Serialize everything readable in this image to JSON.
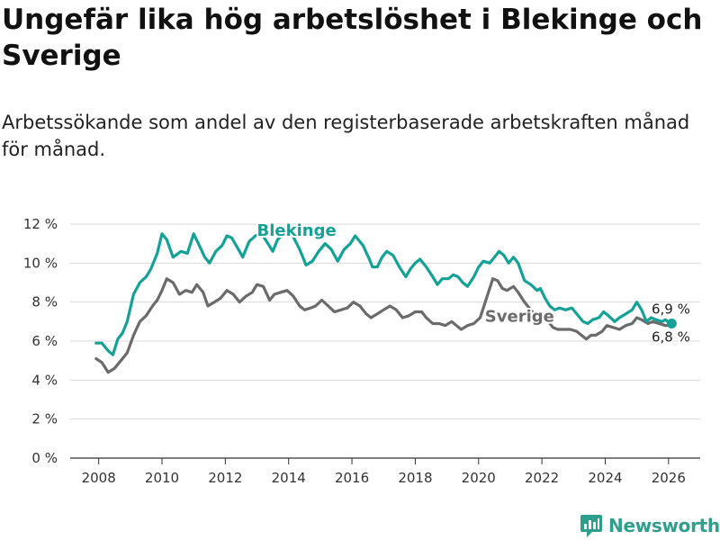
{
  "title": "Ungefär lika hög arbetslöshet i Blekinge och Sverige",
  "subtitle": "Arbetssökande som andel av den registerbaserade arbetskraften månad för månad.",
  "brand": {
    "name": "Newsworthy"
  },
  "colors": {
    "blekinge": "#14a196",
    "sverige": "#6b6b6b",
    "grid": "#d9d9d9",
    "axis": "#333333",
    "brand": "#2f9f8d"
  },
  "chart_data": {
    "type": "line",
    "title": "Ungefär lika hög arbetslöshet i Blekinge och Sverige",
    "subtitle": "Arbetssökande som andel av den registerbaserade arbetskraften månad för månad.",
    "xlabel": "",
    "ylabel": "",
    "xlim": [
      2007.1,
      2027.0
    ],
    "ylim": [
      0,
      12
    ],
    "x_ticks": [
      2008,
      2010,
      2012,
      2014,
      2016,
      2018,
      2020,
      2022,
      2024,
      2026
    ],
    "x_tick_labels": [
      "2008",
      "2010",
      "2012",
      "2014",
      "2016",
      "2018",
      "2020",
      "2022",
      "2024",
      "2026"
    ],
    "y_ticks": [
      0,
      2,
      4,
      6,
      8,
      10,
      12
    ],
    "y_tick_labels": [
      "0 %",
      "2 %",
      "4 %",
      "6 %",
      "8 %",
      "10 %",
      "12 %"
    ],
    "grid": true,
    "series": [
      {
        "name": "Blekinge",
        "color": "#14a196",
        "label_at": [
          2013.0,
          11.4
        ],
        "end_label": "6,9 %",
        "points": [
          [
            2007.92,
            5.9
          ],
          [
            2008.1,
            5.9
          ],
          [
            2008.3,
            5.5
          ],
          [
            2008.45,
            5.3
          ],
          [
            2008.6,
            6.1
          ],
          [
            2008.75,
            6.4
          ],
          [
            2008.9,
            7.0
          ],
          [
            2009.1,
            8.4
          ],
          [
            2009.3,
            9.0
          ],
          [
            2009.5,
            9.3
          ],
          [
            2009.65,
            9.7
          ],
          [
            2009.85,
            10.5
          ],
          [
            2010.0,
            11.5
          ],
          [
            2010.15,
            11.2
          ],
          [
            2010.35,
            10.3
          ],
          [
            2010.6,
            10.6
          ],
          [
            2010.8,
            10.5
          ],
          [
            2011.0,
            11.5
          ],
          [
            2011.15,
            11.0
          ],
          [
            2011.35,
            10.3
          ],
          [
            2011.5,
            10.0
          ],
          [
            2011.7,
            10.6
          ],
          [
            2011.9,
            10.9
          ],
          [
            2012.05,
            11.4
          ],
          [
            2012.2,
            11.3
          ],
          [
            2012.45,
            10.6
          ],
          [
            2012.55,
            10.3
          ],
          [
            2012.75,
            11.1
          ],
          [
            2012.95,
            11.4
          ],
          [
            2013.15,
            11.5
          ],
          [
            2013.35,
            11.0
          ],
          [
            2013.5,
            10.6
          ],
          [
            2013.65,
            11.2
          ],
          [
            2013.85,
            11.5
          ],
          [
            2014.1,
            11.5
          ],
          [
            2014.35,
            10.7
          ],
          [
            2014.55,
            9.9
          ],
          [
            2014.75,
            10.1
          ],
          [
            2014.95,
            10.6
          ],
          [
            2015.15,
            11.0
          ],
          [
            2015.35,
            10.7
          ],
          [
            2015.55,
            10.1
          ],
          [
            2015.75,
            10.7
          ],
          [
            2015.95,
            11.0
          ],
          [
            2016.1,
            11.4
          ],
          [
            2016.35,
            10.9
          ],
          [
            2016.55,
            10.2
          ],
          [
            2016.65,
            9.8
          ],
          [
            2016.8,
            9.8
          ],
          [
            2016.95,
            10.3
          ],
          [
            2017.1,
            10.6
          ],
          [
            2017.3,
            10.4
          ],
          [
            2017.5,
            9.8
          ],
          [
            2017.7,
            9.3
          ],
          [
            2017.85,
            9.7
          ],
          [
            2018.0,
            10.0
          ],
          [
            2018.15,
            10.2
          ],
          [
            2018.35,
            9.8
          ],
          [
            2018.55,
            9.3
          ],
          [
            2018.7,
            8.9
          ],
          [
            2018.85,
            9.2
          ],
          [
            2019.05,
            9.2
          ],
          [
            2019.2,
            9.4
          ],
          [
            2019.35,
            9.3
          ],
          [
            2019.5,
            9.0
          ],
          [
            2019.65,
            8.8
          ],
          [
            2019.85,
            9.3
          ],
          [
            2020.0,
            9.8
          ],
          [
            2020.15,
            10.1
          ],
          [
            2020.35,
            10.0
          ],
          [
            2020.5,
            10.3
          ],
          [
            2020.65,
            10.6
          ],
          [
            2020.8,
            10.4
          ],
          [
            2020.95,
            10.0
          ],
          [
            2021.1,
            10.3
          ],
          [
            2021.25,
            10.0
          ],
          [
            2021.45,
            9.1
          ],
          [
            2021.65,
            8.9
          ],
          [
            2021.85,
            8.6
          ],
          [
            2021.95,
            8.7
          ],
          [
            2022.1,
            8.2
          ],
          [
            2022.25,
            7.8
          ],
          [
            2022.4,
            7.6
          ],
          [
            2022.55,
            7.7
          ],
          [
            2022.75,
            7.6
          ],
          [
            2022.95,
            7.7
          ],
          [
            2023.1,
            7.4
          ],
          [
            2023.3,
            7.0
          ],
          [
            2023.45,
            6.9
          ],
          [
            2023.6,
            7.1
          ],
          [
            2023.8,
            7.2
          ],
          [
            2023.95,
            7.5
          ],
          [
            2024.1,
            7.3
          ],
          [
            2024.3,
            7.0
          ],
          [
            2024.45,
            7.2
          ],
          [
            2024.65,
            7.4
          ],
          [
            2024.85,
            7.6
          ],
          [
            2025.0,
            8.0
          ],
          [
            2025.15,
            7.6
          ],
          [
            2025.3,
            7.0
          ],
          [
            2025.45,
            7.2
          ],
          [
            2025.6,
            7.1
          ],
          [
            2025.8,
            7.0
          ],
          [
            2025.9,
            7.1
          ],
          [
            2026.05,
            6.9
          ],
          [
            2026.1,
            6.9
          ]
        ]
      },
      {
        "name": "Sverige",
        "color": "#6b6b6b",
        "label_at": [
          2020.2,
          7.0
        ],
        "end_label": "6,8 %",
        "points": [
          [
            2007.92,
            5.1
          ],
          [
            2008.1,
            4.9
          ],
          [
            2008.3,
            4.4
          ],
          [
            2008.5,
            4.6
          ],
          [
            2008.7,
            5.0
          ],
          [
            2008.9,
            5.4
          ],
          [
            2009.1,
            6.3
          ],
          [
            2009.3,
            7.0
          ],
          [
            2009.5,
            7.3
          ],
          [
            2009.7,
            7.8
          ],
          [
            2009.85,
            8.1
          ],
          [
            2010.0,
            8.6
          ],
          [
            2010.15,
            9.2
          ],
          [
            2010.35,
            9.0
          ],
          [
            2010.55,
            8.4
          ],
          [
            2010.75,
            8.6
          ],
          [
            2010.95,
            8.5
          ],
          [
            2011.1,
            8.9
          ],
          [
            2011.3,
            8.5
          ],
          [
            2011.45,
            7.8
          ],
          [
            2011.65,
            8.0
          ],
          [
            2011.85,
            8.2
          ],
          [
            2012.05,
            8.6
          ],
          [
            2012.25,
            8.4
          ],
          [
            2012.45,
            8.0
          ],
          [
            2012.65,
            8.3
          ],
          [
            2012.85,
            8.5
          ],
          [
            2013.0,
            8.9
          ],
          [
            2013.2,
            8.8
          ],
          [
            2013.4,
            8.1
          ],
          [
            2013.55,
            8.4
          ],
          [
            2013.75,
            8.5
          ],
          [
            2013.95,
            8.6
          ],
          [
            2014.15,
            8.3
          ],
          [
            2014.35,
            7.8
          ],
          [
            2014.5,
            7.6
          ],
          [
            2014.7,
            7.7
          ],
          [
            2014.85,
            7.8
          ],
          [
            2015.05,
            8.1
          ],
          [
            2015.25,
            7.8
          ],
          [
            2015.45,
            7.5
          ],
          [
            2015.65,
            7.6
          ],
          [
            2015.85,
            7.7
          ],
          [
            2016.05,
            8.0
          ],
          [
            2016.25,
            7.8
          ],
          [
            2016.45,
            7.4
          ],
          [
            2016.6,
            7.2
          ],
          [
            2016.8,
            7.4
          ],
          [
            2017.0,
            7.6
          ],
          [
            2017.2,
            7.8
          ],
          [
            2017.4,
            7.6
          ],
          [
            2017.6,
            7.2
          ],
          [
            2017.8,
            7.3
          ],
          [
            2018.0,
            7.5
          ],
          [
            2018.2,
            7.5
          ],
          [
            2018.35,
            7.2
          ],
          [
            2018.55,
            6.9
          ],
          [
            2018.75,
            6.9
          ],
          [
            2018.95,
            6.8
          ],
          [
            2019.15,
            7.0
          ],
          [
            2019.3,
            6.8
          ],
          [
            2019.45,
            6.6
          ],
          [
            2019.65,
            6.8
          ],
          [
            2019.85,
            6.9
          ],
          [
            2020.05,
            7.2
          ],
          [
            2020.25,
            8.2
          ],
          [
            2020.45,
            9.2
          ],
          [
            2020.6,
            9.1
          ],
          [
            2020.75,
            8.7
          ],
          [
            2020.9,
            8.6
          ],
          [
            2021.1,
            8.8
          ],
          [
            2021.25,
            8.5
          ],
          [
            2021.45,
            8.0
          ],
          [
            2021.65,
            7.6
          ],
          [
            2021.85,
            7.2
          ],
          [
            2022.05,
            7.3
          ],
          [
            2022.2,
            7.0
          ],
          [
            2022.35,
            6.7
          ],
          [
            2022.5,
            6.6
          ],
          [
            2022.7,
            6.6
          ],
          [
            2022.9,
            6.6
          ],
          [
            2023.1,
            6.5
          ],
          [
            2023.25,
            6.3
          ],
          [
            2023.4,
            6.1
          ],
          [
            2023.55,
            6.3
          ],
          [
            2023.7,
            6.3
          ],
          [
            2023.9,
            6.5
          ],
          [
            2024.05,
            6.8
          ],
          [
            2024.25,
            6.7
          ],
          [
            2024.45,
            6.6
          ],
          [
            2024.65,
            6.8
          ],
          [
            2024.85,
            6.9
          ],
          [
            2025.0,
            7.2
          ],
          [
            2025.15,
            7.1
          ],
          [
            2025.35,
            6.9
          ],
          [
            2025.5,
            7.0
          ],
          [
            2025.7,
            6.9
          ],
          [
            2025.9,
            6.8
          ],
          [
            2026.05,
            6.8
          ],
          [
            2026.1,
            6.8
          ]
        ]
      }
    ]
  }
}
